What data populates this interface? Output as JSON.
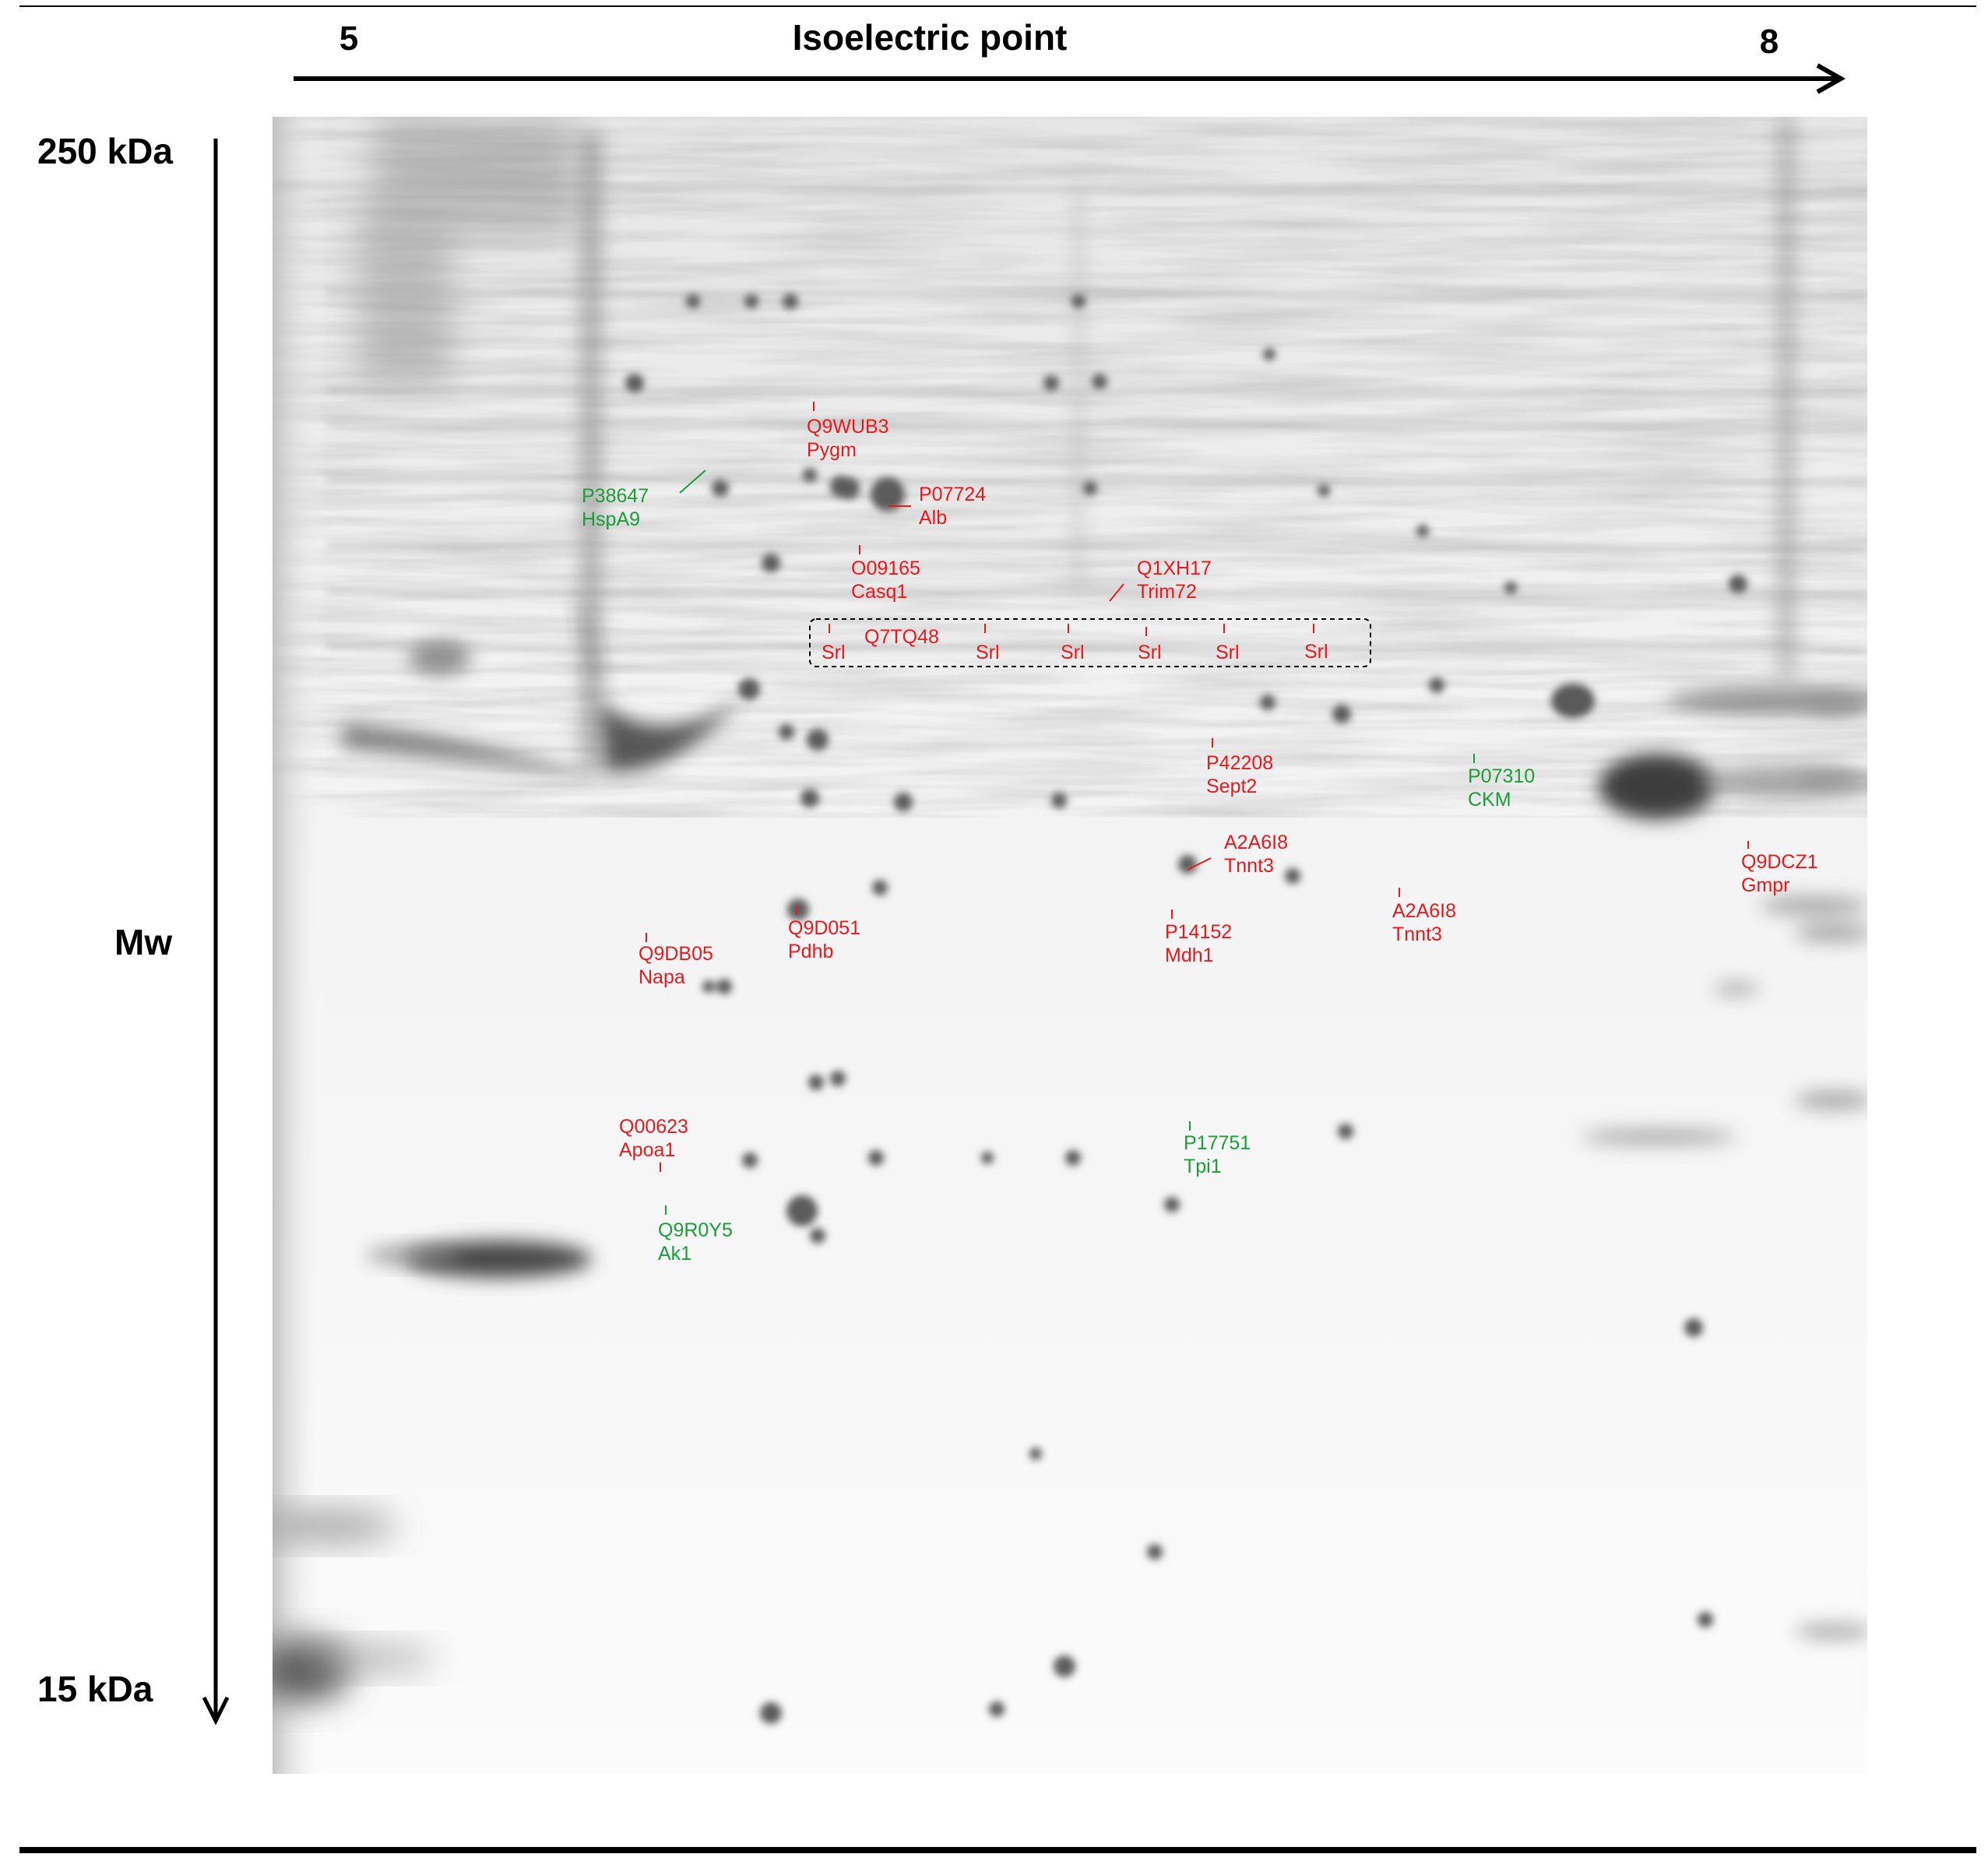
{
  "axes": {
    "x_title": "Isoelectric point",
    "x_min_label": "5",
    "x_max_label": "8",
    "y_title": "Mw",
    "y_top_label": "250 kDa",
    "y_bottom_label": "15 kDa"
  },
  "colors": {
    "decreased": "#e8191d",
    "increased": "#1a9e3a"
  },
  "spots": [
    {
      "accession": "P38647",
      "gene": "HspA9",
      "color": "green"
    },
    {
      "accession": "Q9WUB3",
      "gene": "Pygm",
      "color": "red"
    },
    {
      "accession": "P07724",
      "gene": "Alb",
      "color": "red"
    },
    {
      "accession": "O09165",
      "gene": "Casq1",
      "color": "red"
    },
    {
      "accession": "Q1XH17",
      "gene": "Trim72",
      "color": "red"
    },
    {
      "accession": "P42208",
      "gene": "Sept2",
      "color": "red"
    },
    {
      "accession": "P07310",
      "gene": "CKM",
      "color": "green"
    },
    {
      "accession": "A2A6I8",
      "gene": "Tnnt3",
      "color": "red"
    },
    {
      "accession": "Q9DCZ1",
      "gene": "Gmpr",
      "color": "red"
    },
    {
      "accession": "Q9D051",
      "gene": "Pdhb",
      "color": "red"
    },
    {
      "accession": "P14152",
      "gene": "Mdh1",
      "color": "red"
    },
    {
      "accession": "A2A6I8",
      "gene": "Tnnt3",
      "color": "red"
    },
    {
      "accession": "Q9DB05",
      "gene": "Napa",
      "color": "red"
    },
    {
      "accession": "Q00623",
      "gene": "Apoa1",
      "color": "red"
    },
    {
      "accession": "P17751",
      "gene": "Tpi1",
      "color": "green"
    },
    {
      "accession": "Q9R0Y5",
      "gene": "Ak1",
      "color": "green"
    }
  ],
  "srl_group": {
    "accession": "Q7TQ48",
    "gene": "Srl",
    "spots": [
      "Srl",
      "Srl",
      "Srl",
      "Srl",
      "Srl",
      "Srl"
    ]
  }
}
